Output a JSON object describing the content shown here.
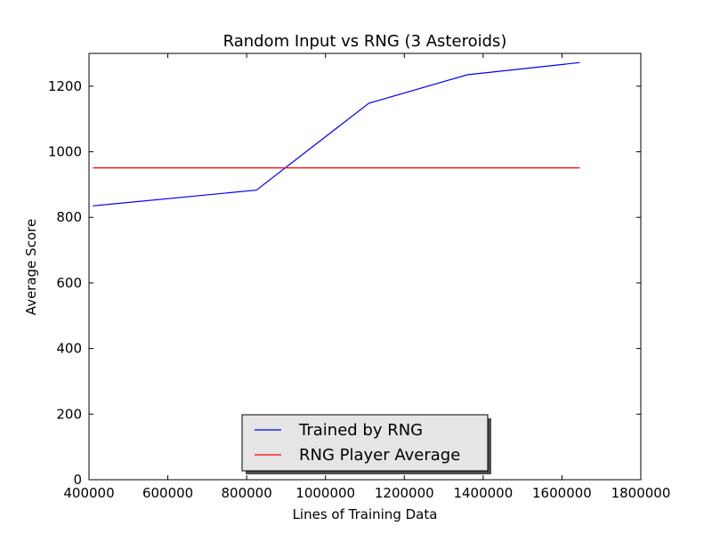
{
  "chart_data": {
    "type": "line",
    "title": "Random Input vs RNG (3 Asteroids)",
    "xlabel": "Lines of Training Data",
    "ylabel": "Average Score",
    "xlim": [
      400000,
      1800000
    ],
    "ylim": [
      0,
      1300
    ],
    "xticks": [
      400000,
      600000,
      800000,
      1000000,
      1200000,
      1400000,
      1600000,
      1800000
    ],
    "yticks": [
      0,
      200,
      400,
      600,
      800,
      1000,
      1200
    ],
    "grid": false,
    "legend_placement": "bottom-center",
    "series": [
      {
        "name": "Trained by RNG",
        "color": "#0000ff",
        "x": [
          410000,
          825000,
          1110000,
          1360000,
          1645000
        ],
        "y": [
          835,
          883,
          1148,
          1235,
          1272
        ]
      },
      {
        "name": "RNG Player Average",
        "color": "#ff0000",
        "x": [
          410000,
          1645000
        ],
        "y": [
          951,
          951
        ]
      }
    ]
  }
}
